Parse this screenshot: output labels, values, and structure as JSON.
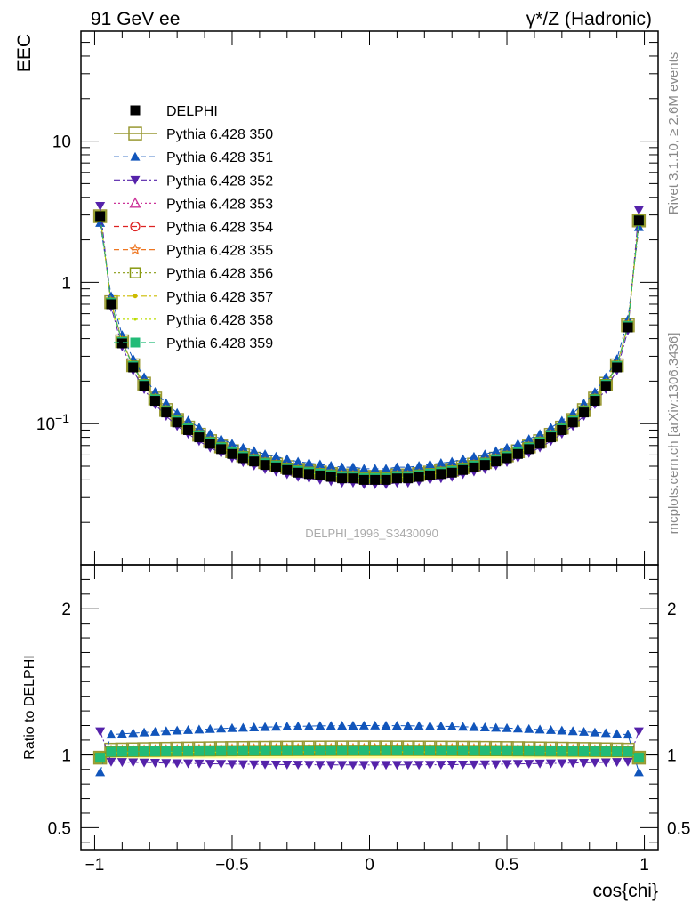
{
  "header": {
    "left_title": "91 GeV ee",
    "right_title": "γ*/Z (Hadronic)",
    "watermark": "DELPHI_1996_S3430090",
    "side_text_top": "Rivet 3.1.10, ≥ 2.6M events",
    "side_text_bottom": "mcplots.cern.ch [arXiv:1306.3436]"
  },
  "chart_data": [
    {
      "type": "scatter",
      "panel": "main",
      "ylabel": "EEC",
      "yscale": "log",
      "ylim": [
        0.01,
        60
      ],
      "ytick_labels": [
        "10",
        "1",
        "10^-1"
      ],
      "xlim": [
        -1.05,
        1.05
      ],
      "legend_placement": "top-left",
      "x": [
        -0.98,
        -0.94,
        -0.9,
        -0.86,
        -0.82,
        -0.78,
        -0.74,
        -0.7,
        -0.66,
        -0.62,
        -0.58,
        -0.54,
        -0.5,
        -0.46,
        -0.42,
        -0.38,
        -0.34,
        -0.3,
        -0.26,
        -0.22,
        -0.18,
        -0.14,
        -0.1,
        -0.06,
        -0.02,
        0.02,
        0.06,
        0.1,
        0.14,
        0.18,
        0.22,
        0.26,
        0.3,
        0.34,
        0.38,
        0.42,
        0.46,
        0.5,
        0.54,
        0.58,
        0.62,
        0.66,
        0.7,
        0.74,
        0.78,
        0.82,
        0.86,
        0.9,
        0.94,
        0.98
      ],
      "series": [
        {
          "name": "DELPHI",
          "color": "#000000",
          "marker": "square-filled",
          "line": "none",
          "ratio": 1.0,
          "values": [
            3.0,
            0.7,
            0.37,
            0.25,
            0.185,
            0.145,
            0.12,
            0.102,
            0.09,
            0.08,
            0.072,
            0.066,
            0.061,
            0.057,
            0.054,
            0.051,
            0.049,
            0.047,
            0.045,
            0.044,
            0.043,
            0.042,
            0.041,
            0.041,
            0.04,
            0.04,
            0.04,
            0.041,
            0.041,
            0.042,
            0.043,
            0.044,
            0.045,
            0.047,
            0.049,
            0.051,
            0.054,
            0.057,
            0.061,
            0.066,
            0.072,
            0.08,
            0.09,
            0.102,
            0.12,
            0.145,
            0.185,
            0.25,
            0.48,
            2.8
          ]
        },
        {
          "name": "Pythia 6.428 350",
          "color": "#999933",
          "marker": "square-open",
          "line": "solid",
          "ratio": 1.05
        },
        {
          "name": "Pythia 6.428 351",
          "color": "#1155bb",
          "marker": "triangle-up-filled",
          "line": "dashed",
          "ratio": 1.2
        },
        {
          "name": "Pythia 6.428 352",
          "color": "#5522aa",
          "marker": "triangle-down-filled",
          "line": "dashdot",
          "ratio": 0.93
        },
        {
          "name": "Pythia 6.428 353",
          "color": "#cc3399",
          "marker": "triangle-up-open",
          "line": "dotted",
          "ratio": 1.03
        },
        {
          "name": "Pythia 6.428 354",
          "color": "#dd2222",
          "marker": "circle-open",
          "line": "dashed",
          "ratio": 1.03
        },
        {
          "name": "Pythia 6.428 355",
          "color": "#ee7722",
          "marker": "star-open",
          "line": "dashed",
          "ratio": 1.04
        },
        {
          "name": "Pythia 6.428 356",
          "color": "#889911",
          "marker": "square-open",
          "line": "dotted",
          "ratio": 1.03
        },
        {
          "name": "Pythia 6.428 357",
          "color": "#ccbb00",
          "marker": "small-filled",
          "line": "dashdot",
          "ratio": 1.02
        },
        {
          "name": "Pythia 6.428 358",
          "color": "#bbdd00",
          "marker": "dot",
          "line": "dotted",
          "ratio": 1.02
        },
        {
          "name": "Pythia 6.428 359",
          "color": "#22bb77",
          "marker": "square-filled",
          "line": "dashed",
          "ratio": 1.03
        }
      ]
    },
    {
      "type": "scatter",
      "panel": "ratio",
      "ylabel": "Ratio to DELPHI",
      "ylim": [
        0.35,
        2.3
      ],
      "ytick_labels": [
        "2",
        "1",
        "0.5"
      ],
      "xlabel": "cos{chi}",
      "xlim": [
        -1.05,
        1.05
      ],
      "xtick_labels": [
        "−1",
        "−0.5",
        "0",
        "0.5",
        "1"
      ]
    }
  ]
}
